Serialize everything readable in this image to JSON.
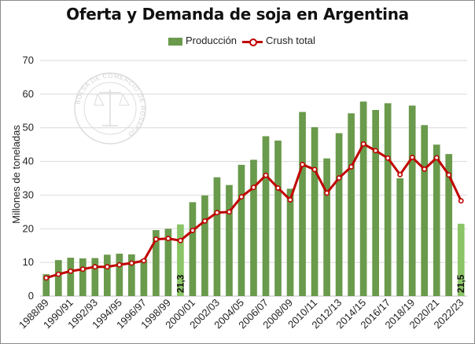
{
  "chart_data": {
    "type": "bar",
    "title": "Oferta y Demanda de soja en Argentina",
    "xlabel": "",
    "ylabel": "Millones de toneladas",
    "ylim": [
      0,
      70
    ],
    "yticks": [
      0,
      10,
      20,
      30,
      40,
      50,
      60,
      70
    ],
    "grid": true,
    "legend_position": "top",
    "categories": [
      "1988/89",
      "1989/90",
      "1990/91",
      "1991/92",
      "1992/93",
      "1993/94",
      "1994/95",
      "1995/96",
      "1996/97",
      "1997/98",
      "1998/99",
      "1999/00",
      "2000/01",
      "2001/02",
      "2002/03",
      "2003/04",
      "2004/05",
      "2005/06",
      "2006/07",
      "2007/08",
      "2008/09",
      "2009/10",
      "2010/11",
      "2011/12",
      "2012/13",
      "2013/14",
      "2014/15",
      "2015/16",
      "2016/17",
      "2017/18",
      "2018/19",
      "2019/20",
      "2020/21",
      "2021/22",
      "2022/23"
    ],
    "visible_tick_labels": [
      "1988/89",
      "1990/91",
      "1992/93",
      "1994/95",
      "1996/97",
      "1998/99",
      "2000/01",
      "2002/03",
      "2004/05",
      "2006/07",
      "2008/09",
      "2010/11",
      "2012/13",
      "2014/15",
      "2016/17",
      "2018/19",
      "2020/21",
      "2022/23"
    ],
    "series": [
      {
        "name": "Producción",
        "type": "bar",
        "color": "#6a9a4c",
        "highlight_color": "#8bc466",
        "highlight_indices": [
          11,
          34
        ],
        "values": [
          6.5,
          10.7,
          11.4,
          11.2,
          11.3,
          12.3,
          12.6,
          12.4,
          11.0,
          19.6,
          20.0,
          21.3,
          27.9,
          29.9,
          35.3,
          33.0,
          39.0,
          40.5,
          47.5,
          46.2,
          31.9,
          54.7,
          50.2,
          40.9,
          48.4,
          54.3,
          57.8,
          55.3,
          57.3,
          35.0,
          56.6,
          50.8,
          45.0,
          42.2,
          21.5
        ]
      },
      {
        "name": "Crush total",
        "type": "line",
        "color": "#c00000",
        "values": [
          5.4,
          6.5,
          7.4,
          8.0,
          8.7,
          8.7,
          9.3,
          9.8,
          10.5,
          16.9,
          17.1,
          16.5,
          19.5,
          22.3,
          24.8,
          25.0,
          29.5,
          32.3,
          35.9,
          32.1,
          28.6,
          39.1,
          37.6,
          30.6,
          35.1,
          38.4,
          45.2,
          43.2,
          41.0,
          36.1,
          41.2,
          37.7,
          41.1,
          36.0,
          28.3
        ]
      }
    ],
    "annotations": [
      {
        "category": "1999/00",
        "text": "21,3"
      },
      {
        "category": "2022/23",
        "text": "21,5"
      }
    ],
    "watermark": "BOLSA DE COMERCIO DE ROSARIO"
  }
}
